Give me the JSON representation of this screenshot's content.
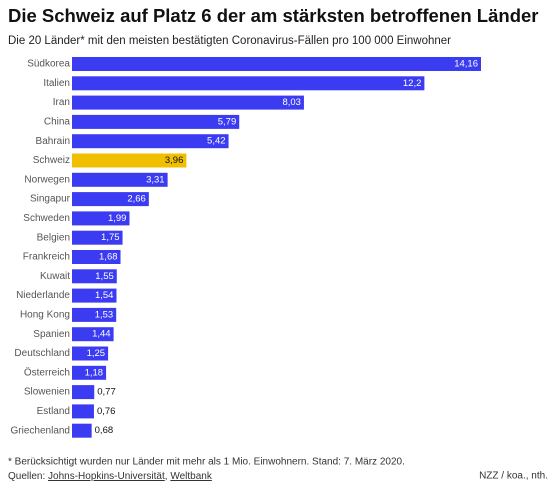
{
  "chart_data": {
    "type": "bar",
    "title": "Die Schweiz auf Platz 6 der am stärksten betroffenen Länder",
    "subtitle": "Die 20 Länder* mit den meisten bestätigten Coronavirus-Fällen pro 100 000 Einwohner",
    "categories": [
      "Südkorea",
      "Italien",
      "Iran",
      "China",
      "Bahrain",
      "Schweiz",
      "Norwegen",
      "Singapur",
      "Schweden",
      "Belgien",
      "Frankreich",
      "Kuwait",
      "Niederlande",
      "Hong Kong",
      "Spanien",
      "Deutschland",
      "Österreich",
      "Slowenien",
      "Estland",
      "Griechenland"
    ],
    "values": [
      14.16,
      12.2,
      8.03,
      5.79,
      5.42,
      3.96,
      3.31,
      2.66,
      1.99,
      1.75,
      1.68,
      1.55,
      1.54,
      1.53,
      1.44,
      1.25,
      1.18,
      0.77,
      0.76,
      0.68
    ],
    "value_labels": [
      "14,16",
      "12,2",
      "8,03",
      "5,79",
      "5,42",
      "3,96",
      "3,31",
      "2,66",
      "1,99",
      "1,75",
      "1,68",
      "1,55",
      "1,54",
      "1,53",
      "1,44",
      "1,25",
      "1,18",
      "0,77",
      "0,76",
      "0,68"
    ],
    "colors": [
      "#3b3bf2",
      "#3b3bf2",
      "#3b3bf2",
      "#3b3bf2",
      "#3b3bf2",
      "#f0bf00",
      "#3b3bf2",
      "#3b3bf2",
      "#3b3bf2",
      "#3b3bf2",
      "#3b3bf2",
      "#3b3bf2",
      "#3b3bf2",
      "#3b3bf2",
      "#3b3bf2",
      "#3b3bf2",
      "#3b3bf2",
      "#3b3bf2",
      "#3b3bf2",
      "#3b3bf2"
    ],
    "footnote": "* Berücksichtigt wurden nur Länder mit mehr als 1 Mio. Einwohnern. Stand: 7. März 2020.",
    "source_label": "Quellen:",
    "sources": [
      "Johns-Hopkins-Universität",
      "Weltbank"
    ],
    "source_separator": ",",
    "credit": "NZZ / koa., nth."
  }
}
